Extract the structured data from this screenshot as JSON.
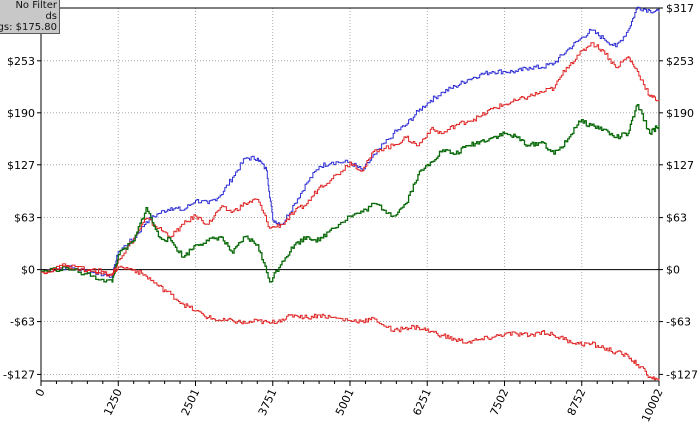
{
  "legend": {
    "line1": "No Filter",
    "line2": "ds",
    "line3": "gs: $175.80"
  },
  "colors": {
    "background": "#ffffff",
    "grid": "#9a9a9a",
    "zero_line": "#000000",
    "blue": "#2f2fd6",
    "red": "#e02424",
    "green": "#0b6b0b",
    "legend_bg": "#c8c8c8"
  },
  "chart_data": {
    "type": "line",
    "title": "",
    "xlabel": "",
    "ylabel": "",
    "xlim": [
      0,
      10002
    ],
    "ylim": [
      -135,
      317
    ],
    "grid": true,
    "x_ticks": [
      {
        "value": 0,
        "label": "0"
      },
      {
        "value": 1250,
        "label": "1250"
      },
      {
        "value": 2501,
        "label": "2501"
      },
      {
        "value": 3751,
        "label": "3751"
      },
      {
        "value": 5001,
        "label": "5001"
      },
      {
        "value": 6251,
        "label": "6251"
      },
      {
        "value": 7502,
        "label": "7502"
      },
      {
        "value": 8752,
        "label": "8752"
      },
      {
        "value": 10002,
        "label": "10002"
      }
    ],
    "y_ticks": [
      {
        "value": 317,
        "label": "$317"
      },
      {
        "value": 253,
        "label": "$253"
      },
      {
        "value": 190,
        "label": "$190"
      },
      {
        "value": 127,
        "label": "$127"
      },
      {
        "value": 63,
        "label": "$63"
      },
      {
        "value": 0,
        "label": "$0"
      },
      {
        "value": -63,
        "label": "-$63"
      },
      {
        "value": -127,
        "label": "-$127"
      }
    ],
    "series": [
      {
        "color": "blue",
        "points": [
          [
            0,
            -2
          ],
          [
            400,
            3
          ],
          [
            800,
            -3
          ],
          [
            1150,
            -8
          ],
          [
            1250,
            22
          ],
          [
            1500,
            38
          ],
          [
            1700,
            58
          ],
          [
            1900,
            68
          ],
          [
            2100,
            75
          ],
          [
            2300,
            72
          ],
          [
            2500,
            84
          ],
          [
            2700,
            80
          ],
          [
            2900,
            90
          ],
          [
            3100,
            112
          ],
          [
            3300,
            135
          ],
          [
            3500,
            135
          ],
          [
            3650,
            120
          ],
          [
            3750,
            60
          ],
          [
            3900,
            55
          ],
          [
            4100,
            80
          ],
          [
            4300,
            105
          ],
          [
            4500,
            125
          ],
          [
            4700,
            130
          ],
          [
            5000,
            130
          ],
          [
            5200,
            120
          ],
          [
            5400,
            140
          ],
          [
            5700,
            165
          ],
          [
            5900,
            175
          ],
          [
            6100,
            192
          ],
          [
            6300,
            205
          ],
          [
            6500,
            215
          ],
          [
            6700,
            222
          ],
          [
            6900,
            230
          ],
          [
            7100,
            236
          ],
          [
            7300,
            240
          ],
          [
            7500,
            240
          ],
          [
            7700,
            240
          ],
          [
            7900,
            245
          ],
          [
            8100,
            245
          ],
          [
            8300,
            250
          ],
          [
            8500,
            265
          ],
          [
            8700,
            278
          ],
          [
            8900,
            290
          ],
          [
            9100,
            280
          ],
          [
            9300,
            270
          ],
          [
            9500,
            290
          ],
          [
            9650,
            318
          ],
          [
            9850,
            314
          ],
          [
            10002,
            312
          ]
        ]
      },
      {
        "color": "red",
        "points": [
          [
            0,
            -2
          ],
          [
            400,
            5
          ],
          [
            800,
            -2
          ],
          [
            1150,
            -6
          ],
          [
            1250,
            12
          ],
          [
            1500,
            38
          ],
          [
            1700,
            62
          ],
          [
            1900,
            50
          ],
          [
            2100,
            40
          ],
          [
            2300,
            55
          ],
          [
            2500,
            65
          ],
          [
            2700,
            55
          ],
          [
            2900,
            75
          ],
          [
            3100,
            70
          ],
          [
            3300,
            80
          ],
          [
            3500,
            85
          ],
          [
            3700,
            50
          ],
          [
            3900,
            55
          ],
          [
            4100,
            70
          ],
          [
            4300,
            80
          ],
          [
            4500,
            100
          ],
          [
            4700,
            110
          ],
          [
            5000,
            130
          ],
          [
            5200,
            120
          ],
          [
            5400,
            145
          ],
          [
            5700,
            150
          ],
          [
            5900,
            160
          ],
          [
            6100,
            150
          ],
          [
            6300,
            170
          ],
          [
            6500,
            165
          ],
          [
            6700,
            175
          ],
          [
            6900,
            180
          ],
          [
            7100,
            185
          ],
          [
            7300,
            195
          ],
          [
            7500,
            200
          ],
          [
            7700,
            205
          ],
          [
            7900,
            210
          ],
          [
            8100,
            215
          ],
          [
            8300,
            220
          ],
          [
            8500,
            245
          ],
          [
            8700,
            260
          ],
          [
            8900,
            275
          ],
          [
            9100,
            265
          ],
          [
            9300,
            245
          ],
          [
            9500,
            258
          ],
          [
            9650,
            240
          ],
          [
            9850,
            210
          ],
          [
            10002,
            205
          ]
        ]
      },
      {
        "color": "green",
        "points": [
          [
            0,
            -2
          ],
          [
            400,
            2
          ],
          [
            800,
            -8
          ],
          [
            1150,
            -15
          ],
          [
            1250,
            18
          ],
          [
            1500,
            35
          ],
          [
            1700,
            75
          ],
          [
            1900,
            40
          ],
          [
            2100,
            35
          ],
          [
            2300,
            15
          ],
          [
            2500,
            30
          ],
          [
            2700,
            35
          ],
          [
            2900,
            40
          ],
          [
            3100,
            20
          ],
          [
            3300,
            40
          ],
          [
            3500,
            30
          ],
          [
            3700,
            -15
          ],
          [
            3900,
            10
          ],
          [
            4100,
            30
          ],
          [
            4300,
            40
          ],
          [
            4500,
            35
          ],
          [
            4700,
            50
          ],
          [
            5000,
            65
          ],
          [
            5200,
            70
          ],
          [
            5400,
            80
          ],
          [
            5700,
            65
          ],
          [
            5900,
            80
          ],
          [
            6100,
            115
          ],
          [
            6300,
            130
          ],
          [
            6500,
            145
          ],
          [
            6700,
            140
          ],
          [
            6900,
            150
          ],
          [
            7100,
            155
          ],
          [
            7300,
            160
          ],
          [
            7500,
            165
          ],
          [
            7700,
            160
          ],
          [
            7900,
            150
          ],
          [
            8100,
            155
          ],
          [
            8300,
            140
          ],
          [
            8500,
            155
          ],
          [
            8700,
            180
          ],
          [
            8900,
            175
          ],
          [
            9100,
            170
          ],
          [
            9300,
            160
          ],
          [
            9500,
            165
          ],
          [
            9650,
            200
          ],
          [
            9850,
            165
          ],
          [
            10002,
            175
          ]
        ]
      },
      {
        "color": "red",
        "points": [
          [
            0,
            -3
          ],
          [
            400,
            4
          ],
          [
            800,
            0
          ],
          [
            1150,
            -5
          ],
          [
            1250,
            3
          ],
          [
            1500,
            0
          ],
          [
            1700,
            -8
          ],
          [
            1900,
            -20
          ],
          [
            2100,
            -30
          ],
          [
            2300,
            -42
          ],
          [
            2500,
            -50
          ],
          [
            2700,
            -58
          ],
          [
            2900,
            -62
          ],
          [
            3100,
            -62
          ],
          [
            3300,
            -65
          ],
          [
            3500,
            -62
          ],
          [
            3700,
            -65
          ],
          [
            3900,
            -60
          ],
          [
            4100,
            -55
          ],
          [
            4300,
            -58
          ],
          [
            4500,
            -55
          ],
          [
            4700,
            -58
          ],
          [
            5000,
            -62
          ],
          [
            5200,
            -62
          ],
          [
            5400,
            -60
          ],
          [
            5700,
            -75
          ],
          [
            5900,
            -70
          ],
          [
            6100,
            -70
          ],
          [
            6300,
            -75
          ],
          [
            6500,
            -80
          ],
          [
            6700,
            -85
          ],
          [
            6900,
            -88
          ],
          [
            7100,
            -85
          ],
          [
            7300,
            -82
          ],
          [
            7500,
            -78
          ],
          [
            7700,
            -78
          ],
          [
            7900,
            -80
          ],
          [
            8100,
            -75
          ],
          [
            8300,
            -80
          ],
          [
            8500,
            -85
          ],
          [
            8700,
            -90
          ],
          [
            8900,
            -90
          ],
          [
            9100,
            -95
          ],
          [
            9300,
            -100
          ],
          [
            9500,
            -105
          ],
          [
            9650,
            -115
          ],
          [
            9850,
            -130
          ],
          [
            10002,
            -135
          ]
        ]
      }
    ]
  }
}
